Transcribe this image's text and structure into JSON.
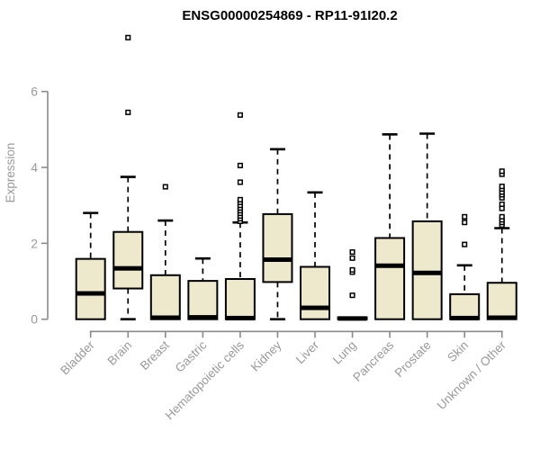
{
  "chart_data": {
    "type": "boxplot",
    "title": "ENSG00000254869 - RP11-91I20.2",
    "ylabel": "Expression",
    "xlabel": "",
    "yticks": [
      0,
      2,
      4,
      6
    ],
    "ylim": [
      0,
      6
    ],
    "grid": false,
    "legend": false,
    "categories": [
      "Bladder",
      "Brain",
      "Breast",
      "Gastric",
      "Hematopoietic cells",
      "Kidney",
      "Liver",
      "Lung",
      "Pancreas",
      "Prostate",
      "Skin",
      "Unknown / Other"
    ],
    "series": [
      {
        "category": "Bladder",
        "min": 0,
        "q1": 0,
        "median": 0.68,
        "q3": 1.59,
        "max": 2.8,
        "outliers": []
      },
      {
        "category": "Brain",
        "min": 0,
        "q1": 0.81,
        "median": 1.34,
        "q3": 2.3,
        "max": 3.75,
        "outliers": [
          5.45,
          7.42
        ]
      },
      {
        "category": "Breast",
        "min": 0,
        "q1": 0,
        "median": 0.04,
        "q3": 1.16,
        "max": 2.6,
        "outliers": [
          3.49
        ]
      },
      {
        "category": "Gastric",
        "min": 0,
        "q1": 0,
        "median": 0.05,
        "q3": 1.01,
        "max": 1.6,
        "outliers": []
      },
      {
        "category": "Hematopoietic cells",
        "min": 0,
        "q1": 0,
        "median": 0.03,
        "q3": 1.06,
        "max": 2.55,
        "outliers": [
          2.58,
          2.65,
          2.72,
          2.79,
          2.86,
          2.93,
          3.0,
          3.08,
          3.15,
          3.61,
          4.05,
          5.38
        ]
      },
      {
        "category": "Kidney",
        "min": 0,
        "q1": 0.98,
        "median": 1.57,
        "q3": 2.77,
        "max": 4.48,
        "outliers": []
      },
      {
        "category": "Liver",
        "min": 0,
        "q1": 0,
        "median": 0.3,
        "q3": 1.38,
        "max": 3.34,
        "outliers": []
      },
      {
        "category": "Lung",
        "min": 0,
        "q1": 0,
        "median": 0.02,
        "q3": 0.05,
        "max": 0.05,
        "outliers": [
          0.63,
          1.24,
          1.3,
          1.61,
          1.77
        ]
      },
      {
        "category": "Pancreas",
        "min": 0,
        "q1": 0,
        "median": 1.41,
        "q3": 2.14,
        "max": 4.87,
        "outliers": []
      },
      {
        "category": "Prostate",
        "min": 0,
        "q1": 0,
        "median": 1.22,
        "q3": 2.58,
        "max": 4.89,
        "outliers": []
      },
      {
        "category": "Skin",
        "min": 0,
        "q1": 0,
        "median": 0.03,
        "q3": 0.66,
        "max": 1.42,
        "outliers": [
          1.97,
          2.55,
          2.7
        ]
      },
      {
        "category": "Unknown / Other",
        "min": 0,
        "q1": 0,
        "median": 0.04,
        "q3": 0.96,
        "max": 2.4,
        "outliers": [
          2.48,
          2.55,
          2.62,
          2.7,
          2.92,
          3.03,
          3.2,
          3.28,
          3.35,
          3.43,
          3.5,
          3.82,
          3.9
        ]
      }
    ],
    "colors": {
      "box_fill": "#EEE8CD",
      "box_stroke": "#000000",
      "median": "#000000",
      "whisker": "#000000",
      "outlier_stroke": "#000000",
      "axis": "#8A8A8A",
      "label_gray": "#999999",
      "title": "#000000",
      "background": "#FFFFFF"
    }
  }
}
